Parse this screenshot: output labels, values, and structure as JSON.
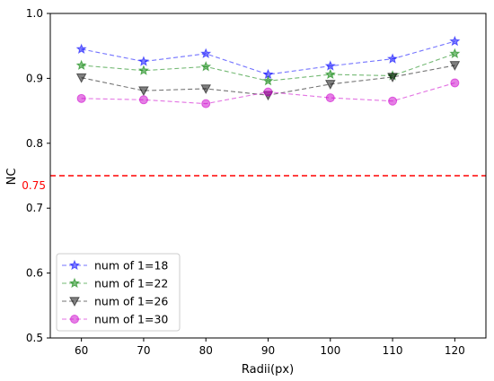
{
  "chart_data": {
    "type": "line",
    "title": "",
    "xlabel": "Radii(px)",
    "ylabel": "NC",
    "x": [
      60,
      70,
      80,
      90,
      100,
      110,
      120
    ],
    "xlim": [
      55,
      125
    ],
    "ylim": [
      0.5,
      1.0
    ],
    "xticks": [
      "60",
      "70",
      "80",
      "90",
      "100",
      "110",
      "120"
    ],
    "yticks": [
      "0.5",
      "0.6",
      "0.7",
      "0.8",
      "0.9",
      "1.0"
    ],
    "grid": false,
    "legend_position": "lower-left",
    "threshold": {
      "value": 0.75,
      "label": "0.75",
      "color": "#ff0000",
      "style": "dashed"
    },
    "series": [
      {
        "name": "num of 1=18",
        "color": "#0000ff",
        "marker": "star",
        "values": [
          0.945,
          0.926,
          0.938,
          0.906,
          0.919,
          0.93,
          0.957
        ]
      },
      {
        "name": "num of 1=22",
        "color": "#008000",
        "marker": "star",
        "values": [
          0.92,
          0.912,
          0.918,
          0.896,
          0.906,
          0.904,
          0.938
        ]
      },
      {
        "name": "num of 1=26",
        "color": "#000000",
        "marker": "triangle-down",
        "values": [
          0.901,
          0.881,
          0.884,
          0.874,
          0.891,
          0.902,
          0.92
        ]
      },
      {
        "name": "num of 1=30",
        "color": "#cc00cc",
        "marker": "circle",
        "values": [
          0.869,
          0.867,
          0.861,
          0.879,
          0.87,
          0.865,
          0.893
        ]
      }
    ]
  }
}
